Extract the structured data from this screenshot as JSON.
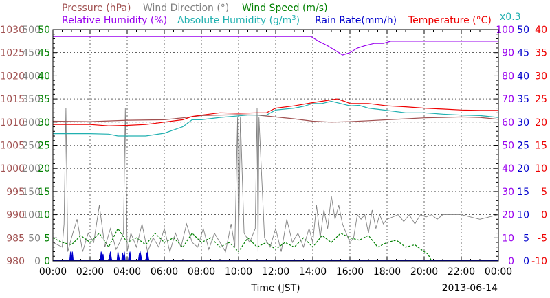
{
  "chart_data": {
    "type": "line",
    "date": "2013-06-14",
    "xlabel": "Time (JST)",
    "xlim": [
      0,
      24
    ],
    "x_ticks": [
      "00:00",
      "02:00",
      "04:00",
      "06:00",
      "08:00",
      "10:00",
      "12:00",
      "14:00",
      "16:00",
      "18:00",
      "20:00",
      "22:00",
      "00:00"
    ],
    "grid": true,
    "legend_row1": [
      {
        "text": "Pressure (hPa)",
        "color": "#a05050"
      },
      {
        "text": "Wind Direction (°)",
        "color": "#808080"
      },
      {
        "text": "Wind Speed (m/s)",
        "color": "#008000"
      }
    ],
    "legend_row2": [
      {
        "text": "Relative Humidity (%)",
        "color": "#9900ee"
      },
      {
        "text": "Absolute Humidity (g/m",
        "sup": "3",
        "close": ")",
        "color": "#20b0b0"
      },
      {
        "text": "Rain Rate(mm/h)",
        "color": "#0000cc"
      },
      {
        "text": "Temperature (°C)",
        "color": "#ee0000"
      }
    ],
    "rain_scale_note": "x0.3",
    "axes": {
      "pressure": {
        "color": "#a05050",
        "range": [
          980,
          1030
        ],
        "ticks": [
          "1030",
          "1025",
          "1020",
          "1015",
          "1010",
          "1005",
          "1000",
          "995",
          "990",
          "985",
          "980"
        ]
      },
      "wind_direction": {
        "color": "#808080",
        "range": [
          0,
          500
        ],
        "ticks": [
          "500",
          "450",
          "400",
          "350",
          "300",
          "250",
          "200",
          "150",
          "100",
          "50",
          "0"
        ]
      },
      "wind_speed": {
        "color": "#008000",
        "range": [
          0,
          50
        ],
        "ticks": [
          "50",
          "45",
          "40",
          "35",
          "30",
          "25",
          "20",
          "15",
          "10",
          "5",
          "0"
        ]
      },
      "humidity": {
        "color": "#9900ee",
        "range": [
          0,
          100
        ],
        "ticks": [
          "100",
          "90",
          "80",
          "70",
          "60",
          "50",
          "40",
          "30",
          "20",
          "10",
          "0"
        ]
      },
      "rain": {
        "color": "#0000cc",
        "range": [
          0,
          50
        ],
        "ticks": [
          "50",
          "45",
          "40",
          "35",
          "30",
          "25",
          "20",
          "15",
          "10",
          "5",
          "0"
        ]
      },
      "temperature": {
        "color": "#ee0000",
        "range": [
          -10,
          40
        ],
        "ticks": [
          "40",
          "35",
          "30",
          "25",
          "20",
          "15",
          "10",
          "5",
          "0",
          "-5",
          "-10"
        ]
      }
    },
    "series": [
      {
        "name": "Relative Humidity",
        "axis": "humidity",
        "color": "#9900ee",
        "x": [
          0,
          13.9,
          14.3,
          14.8,
          15.2,
          15.6,
          16.0,
          16.4,
          16.8,
          17.3,
          17.8,
          18.2,
          20,
          22,
          24
        ],
        "y": [
          97,
          97,
          95,
          93,
          91,
          89,
          90,
          92,
          93,
          94,
          94,
          95,
          95,
          95,
          95
        ]
      },
      {
        "name": "Absolute Humidity",
        "axis": "wind_speed",
        "color": "#20b0b0",
        "x": [
          0,
          2,
          3,
          3.5,
          5,
          6,
          7,
          7.5,
          8,
          9,
          10.5,
          11.5,
          12,
          13,
          13.5,
          14,
          14.5,
          15,
          15.5,
          16,
          16.5,
          17,
          18,
          19,
          20,
          21,
          22,
          23,
          24
        ],
        "y": [
          27.5,
          27.5,
          27.4,
          27,
          27,
          27.6,
          29,
          30.5,
          30.5,
          31,
          31.5,
          31.5,
          32.6,
          33,
          33.4,
          34,
          34,
          34.5,
          34,
          33.5,
          33.6,
          33,
          32.5,
          32,
          32,
          31.7,
          31.5,
          31.4,
          31
        ]
      },
      {
        "name": "Temperature",
        "axis": "temperature",
        "color": "#ee0000",
        "x": [
          0,
          2,
          3,
          4,
          5,
          6,
          7,
          7.5,
          8,
          9,
          10,
          11,
          11.5,
          12,
          13,
          14,
          15,
          15.3,
          15.7,
          16,
          17,
          18,
          19,
          20,
          21,
          22,
          23,
          24
        ],
        "y": [
          19.5,
          19.5,
          19.2,
          19.3,
          19.5,
          20,
          20.5,
          21.2,
          21.5,
          22,
          21.9,
          22,
          22,
          23,
          23.5,
          24.2,
          24.8,
          25,
          24.5,
          24,
          24,
          23.5,
          23.3,
          23,
          22.8,
          22.6,
          22.5,
          22.5
        ]
      },
      {
        "name": "Pressure",
        "axis": "pressure",
        "color": "#a05050",
        "x": [
          0,
          2,
          4,
          6,
          7,
          8,
          10,
          11,
          12,
          13,
          14,
          15,
          16,
          17,
          18,
          19,
          20,
          21,
          22,
          23,
          24
        ],
        "y": [
          1010.2,
          1010.1,
          1010.4,
          1010.5,
          1010.9,
          1011.4,
          1011.6,
          1011.5,
          1011.1,
          1010.7,
          1010.2,
          1010.0,
          1010.1,
          1010.3,
          1010.5,
          1010.7,
          1010.9,
          1011.0,
          1011.1,
          1011.0,
          1010.6
        ]
      },
      {
        "name": "Wind Direction",
        "axis": "wind_direction",
        "color": "#808080",
        "x": [
          0,
          0.5,
          0.6,
          0.7,
          0.8,
          1.0,
          1.3,
          1.6,
          1.9,
          2.2,
          2.5,
          2.8,
          3.1,
          3.4,
          3.6,
          3.8,
          3.9,
          4.0,
          4.2,
          4.5,
          4.8,
          5.1,
          5.4,
          5.7,
          6.0,
          6.3,
          6.6,
          6.9,
          7.2,
          7.5,
          7.8,
          8.1,
          8.4,
          8.7,
          9.0,
          9.3,
          9.6,
          9.8,
          9.95,
          10.0,
          10.1,
          10.3,
          10.6,
          10.9,
          11.0,
          11.05,
          11.1,
          11.4,
          11.7,
          12.0,
          12.3,
          12.6,
          12.9,
          13.2,
          13.5,
          13.8,
          14.0,
          14.2,
          14.4,
          14.6,
          14.8,
          15.0,
          15.2,
          15.4,
          15.6,
          15.8,
          16.0,
          16.2,
          16.4,
          16.6,
          16.8,
          17.0,
          17.2,
          17.4,
          17.6,
          17.8,
          18.0,
          18.3,
          18.6,
          18.9,
          19.2,
          19.5,
          19.8,
          20.1,
          20.4,
          20.7,
          21.0,
          21.5,
          22,
          23,
          24
        ],
        "y": [
          40,
          30,
          80,
          330,
          20,
          50,
          90,
          20,
          60,
          40,
          120,
          30,
          70,
          25,
          40,
          60,
          330,
          20,
          60,
          30,
          80,
          20,
          50,
          30,
          70,
          20,
          60,
          30,
          80,
          40,
          30,
          70,
          25,
          60,
          40,
          20,
          80,
          30,
          310,
          20,
          310,
          60,
          40,
          70,
          330,
          20,
          310,
          50,
          30,
          70,
          20,
          90,
          40,
          60,
          30,
          70,
          40,
          120,
          50,
          110,
          70,
          140,
          90,
          120,
          80,
          60,
          40,
          50,
          100,
          90,
          100,
          60,
          110,
          70,
          100,
          80,
          90,
          95,
          100,
          85,
          100,
          80,
          100,
          95,
          100,
          90,
          100,
          100,
          100,
          90,
          100
        ]
      },
      {
        "name": "Wind Speed",
        "axis": "wind_speed",
        "color": "#008000",
        "x": [
          0,
          0.5,
          1,
          1.5,
          2,
          2.5,
          3,
          3.5,
          4,
          4.5,
          5,
          5.5,
          6,
          6.5,
          7,
          7.5,
          8,
          8.5,
          9,
          9.5,
          10,
          10.5,
          11,
          11.5,
          12,
          12.5,
          13,
          13.5,
          14,
          14.5,
          15,
          15.5,
          16,
          16.5,
          17,
          17.5,
          18,
          18.5,
          19,
          19.5,
          20,
          20.2,
          20.4
        ],
        "y": [
          5,
          4,
          3.5,
          5.5,
          4,
          6,
          3,
          7,
          4,
          5,
          3.5,
          6,
          4,
          5,
          3,
          6,
          4,
          5,
          3,
          4,
          2,
          5,
          3,
          4,
          2.5,
          4,
          3,
          5,
          3,
          5.5,
          4,
          6,
          5,
          4.5,
          5.5,
          3,
          4,
          4.5,
          3,
          3.5,
          2,
          1.5,
          0
        ]
      },
      {
        "name": "Rain Rate",
        "axis": "rain",
        "color": "#0000cc",
        "x": [
          0.9,
          0.95,
          1.0,
          1.05,
          1.1,
          2.55,
          2.6,
          2.65,
          2.7,
          2.75,
          3.0,
          3.05,
          3.1,
          3.15,
          3.2,
          3.45,
          3.5,
          3.55,
          3.6,
          3.7,
          3.75,
          3.8,
          3.85,
          3.9,
          4.05,
          4.1,
          4.15,
          4.2,
          4.6,
          4.65,
          4.7,
          4.75,
          4.8,
          5.0,
          5.05,
          5.1,
          5.15,
          5.2
        ],
        "y": [
          0,
          2,
          0.5,
          2,
          0,
          0,
          2,
          0.5,
          1.5,
          0,
          0,
          1,
          2,
          0.5,
          0,
          0,
          2,
          1,
          0,
          0,
          1.8,
          0.5,
          2,
          0,
          0,
          1,
          2,
          0,
          0,
          1.5,
          2,
          1,
          0,
          0,
          1.5,
          2,
          0.5,
          0
        ]
      }
    ]
  }
}
